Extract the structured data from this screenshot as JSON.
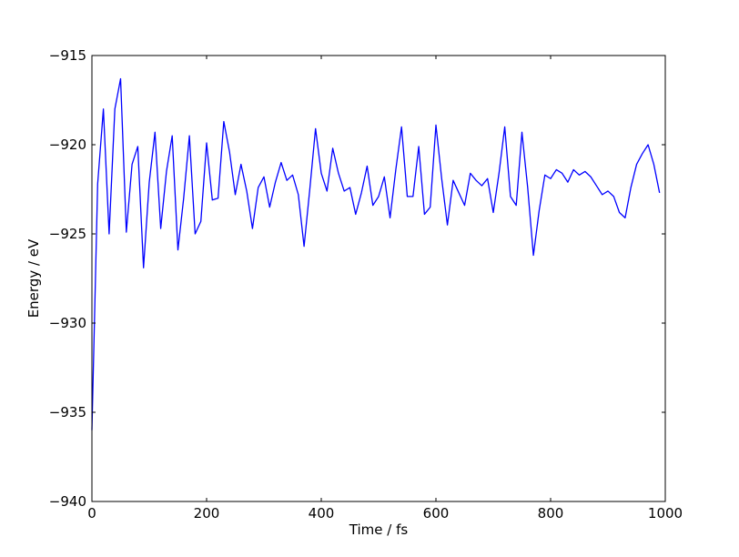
{
  "chart_data": {
    "type": "line",
    "title": "",
    "xlabel": "Time / fs",
    "ylabel": "Energy / eV",
    "xlim": [
      0,
      1000
    ],
    "ylim": [
      -940,
      -915
    ],
    "grid": false,
    "legend": "none",
    "line_color": "#0000ff",
    "x_ticks": [
      {
        "value": 0,
        "label": "0"
      },
      {
        "value": 200,
        "label": "200"
      },
      {
        "value": 400,
        "label": "400"
      },
      {
        "value": 600,
        "label": "600"
      },
      {
        "value": 800,
        "label": "800"
      },
      {
        "value": 1000,
        "label": "1000"
      }
    ],
    "y_ticks": [
      {
        "value": -915,
        "label": "−915"
      },
      {
        "value": -920,
        "label": "−920"
      },
      {
        "value": -925,
        "label": "−925"
      },
      {
        "value": -930,
        "label": "−930"
      },
      {
        "value": -935,
        "label": "−935"
      },
      {
        "value": -940,
        "label": "−940"
      }
    ],
    "series": [
      {
        "x": [
          0,
          10,
          20,
          30,
          40,
          50,
          60,
          70,
          80,
          90,
          100,
          110,
          120,
          130,
          140,
          150,
          160,
          170,
          180,
          190,
          200,
          210,
          220,
          230,
          240,
          250,
          260,
          270,
          280,
          290,
          300,
          310,
          320,
          330,
          340,
          350,
          360,
          370,
          380,
          390,
          400,
          410,
          420,
          430,
          440,
          450,
          460,
          470,
          480,
          490,
          500,
          510,
          520,
          530,
          540,
          550,
          560,
          570,
          580,
          590,
          600,
          610,
          620,
          630,
          640,
          650,
          660,
          670,
          680,
          690,
          700,
          710,
          720,
          730,
          740,
          750,
          760,
          770,
          780,
          790,
          800,
          810,
          820,
          830,
          840,
          850,
          860,
          870,
          880,
          890,
          900,
          910,
          920,
          930,
          940,
          950,
          960,
          970,
          980,
          990
        ],
        "y": [
          -936.0,
          -922.2,
          -918.0,
          -925.0,
          -918.0,
          -916.3,
          -924.9,
          -921.1,
          -920.1,
          -926.9,
          -922.1,
          -919.3,
          -924.7,
          -921.5,
          -919.5,
          -925.9,
          -923.0,
          -919.5,
          -925.0,
          -924.3,
          -919.9,
          -923.1,
          -923.0,
          -918.7,
          -920.4,
          -922.8,
          -921.1,
          -922.6,
          -924.7,
          -922.4,
          -921.8,
          -923.5,
          -922.1,
          -921.0,
          -922.0,
          -921.7,
          -922.8,
          -925.7,
          -922.5,
          -919.1,
          -921.6,
          -922.6,
          -920.2,
          -921.6,
          -922.6,
          -922.4,
          -923.9,
          -922.7,
          -921.2,
          -923.4,
          -922.9,
          -921.8,
          -924.1,
          -921.4,
          -919.0,
          -922.9,
          -922.9,
          -920.1,
          -923.9,
          -923.5,
          -918.9,
          -921.9,
          -924.5,
          -922.0,
          -922.7,
          -923.4,
          -921.6,
          -922.0,
          -922.3,
          -921.9,
          -923.8,
          -921.6,
          -919.0,
          -922.9,
          -923.4,
          -919.3,
          -922.4,
          -926.2,
          -923.7,
          -921.7,
          -921.9,
          -921.4,
          -921.6,
          -922.1,
          -921.4,
          -921.7,
          -921.5,
          -921.8,
          -922.3,
          -922.8,
          -922.6,
          -922.9,
          -923.8,
          -924.1,
          -922.4,
          -921.1,
          -920.5,
          -920.0,
          -921.1,
          -922.7
        ]
      }
    ]
  }
}
